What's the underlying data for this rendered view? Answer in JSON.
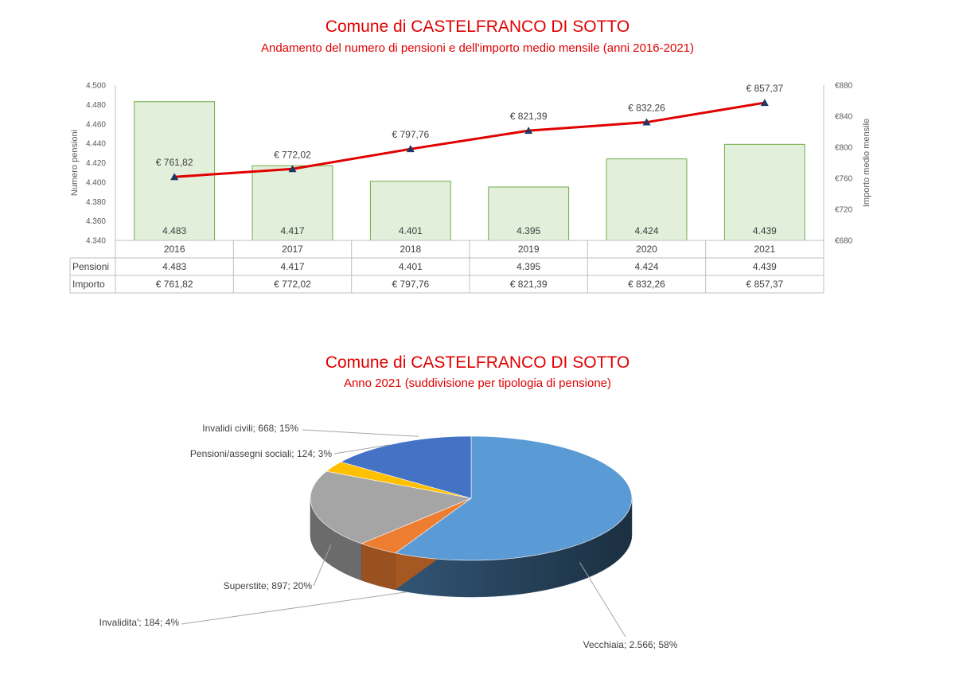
{
  "chart_data": [
    {
      "type": "bar",
      "title": "Comune di CASTELFRANCO DI SOTTO",
      "subtitle": "Andamento del numero di pensioni e dell'importo medio mensile (anni 2016-2021)",
      "categories": [
        "2016",
        "2017",
        "2018",
        "2019",
        "2020",
        "2021"
      ],
      "series": [
        {
          "name": "Pensioni",
          "kind": "bar",
          "axis": "left",
          "color": "#e2efda",
          "edge_color": "#70ad47",
          "values": [
            4483,
            4417,
            4401,
            4395,
            4424,
            4439
          ],
          "labels": [
            "4.483",
            "4.417",
            "4.401",
            "4.395",
            "4.424",
            "4.439"
          ]
        },
        {
          "name": "Importo",
          "kind": "line",
          "axis": "right",
          "color": "#e00000",
          "marker_color": "#1f3864",
          "values": [
            761.82,
            772.02,
            797.76,
            821.39,
            832.26,
            857.37
          ],
          "labels": [
            "€ 761,82",
            "€ 772,02",
            "€ 797,76",
            "€ 821,39",
            "€ 832,26",
            "€ 857,37"
          ]
        }
      ],
      "ylabel": "Numero pensioni",
      "y2label": "Importo medio mensile",
      "ylim": [
        4340,
        4500
      ],
      "y2lim": [
        680,
        880
      ],
      "yticks": [
        "4.340",
        "4.360",
        "4.380",
        "4.400",
        "4.420",
        "4.440",
        "4.460",
        "4.480",
        "4.500"
      ],
      "y2ticks": [
        "€680",
        "€720",
        "€760",
        "€800",
        "€840",
        "€880"
      ],
      "grid": false,
      "data_table": true
    },
    {
      "type": "pie",
      "style": "3d",
      "title": "Comune di CASTELFRANCO DI SOTTO",
      "subtitle": "Anno 2021 (suddivisione per tipologia di pensione)",
      "slices": [
        {
          "label": "Vecchiaia; 2.566; 58%",
          "name": "Vecchiaia",
          "value": 2566,
          "percent": 58,
          "color": "#5b9bd5"
        },
        {
          "label": "Invalidita'; 184; 4%",
          "name": "Invalidita'",
          "value": 184,
          "percent": 4,
          "color": "#ed7d31"
        },
        {
          "label": "Superstite; 897; 20%",
          "name": "Superstite",
          "value": 897,
          "percent": 20,
          "color": "#a5a5a5"
        },
        {
          "label": "Pensioni/assegni sociali; 124; 3%",
          "name": "Pensioni/assegni sociali",
          "value": 124,
          "percent": 3,
          "color": "#ffc000"
        },
        {
          "label": "Invalidi civili; 668; 15%",
          "name": "Invalidi civili",
          "value": 668,
          "percent": 15,
          "color": "#4472c4"
        }
      ]
    }
  ]
}
